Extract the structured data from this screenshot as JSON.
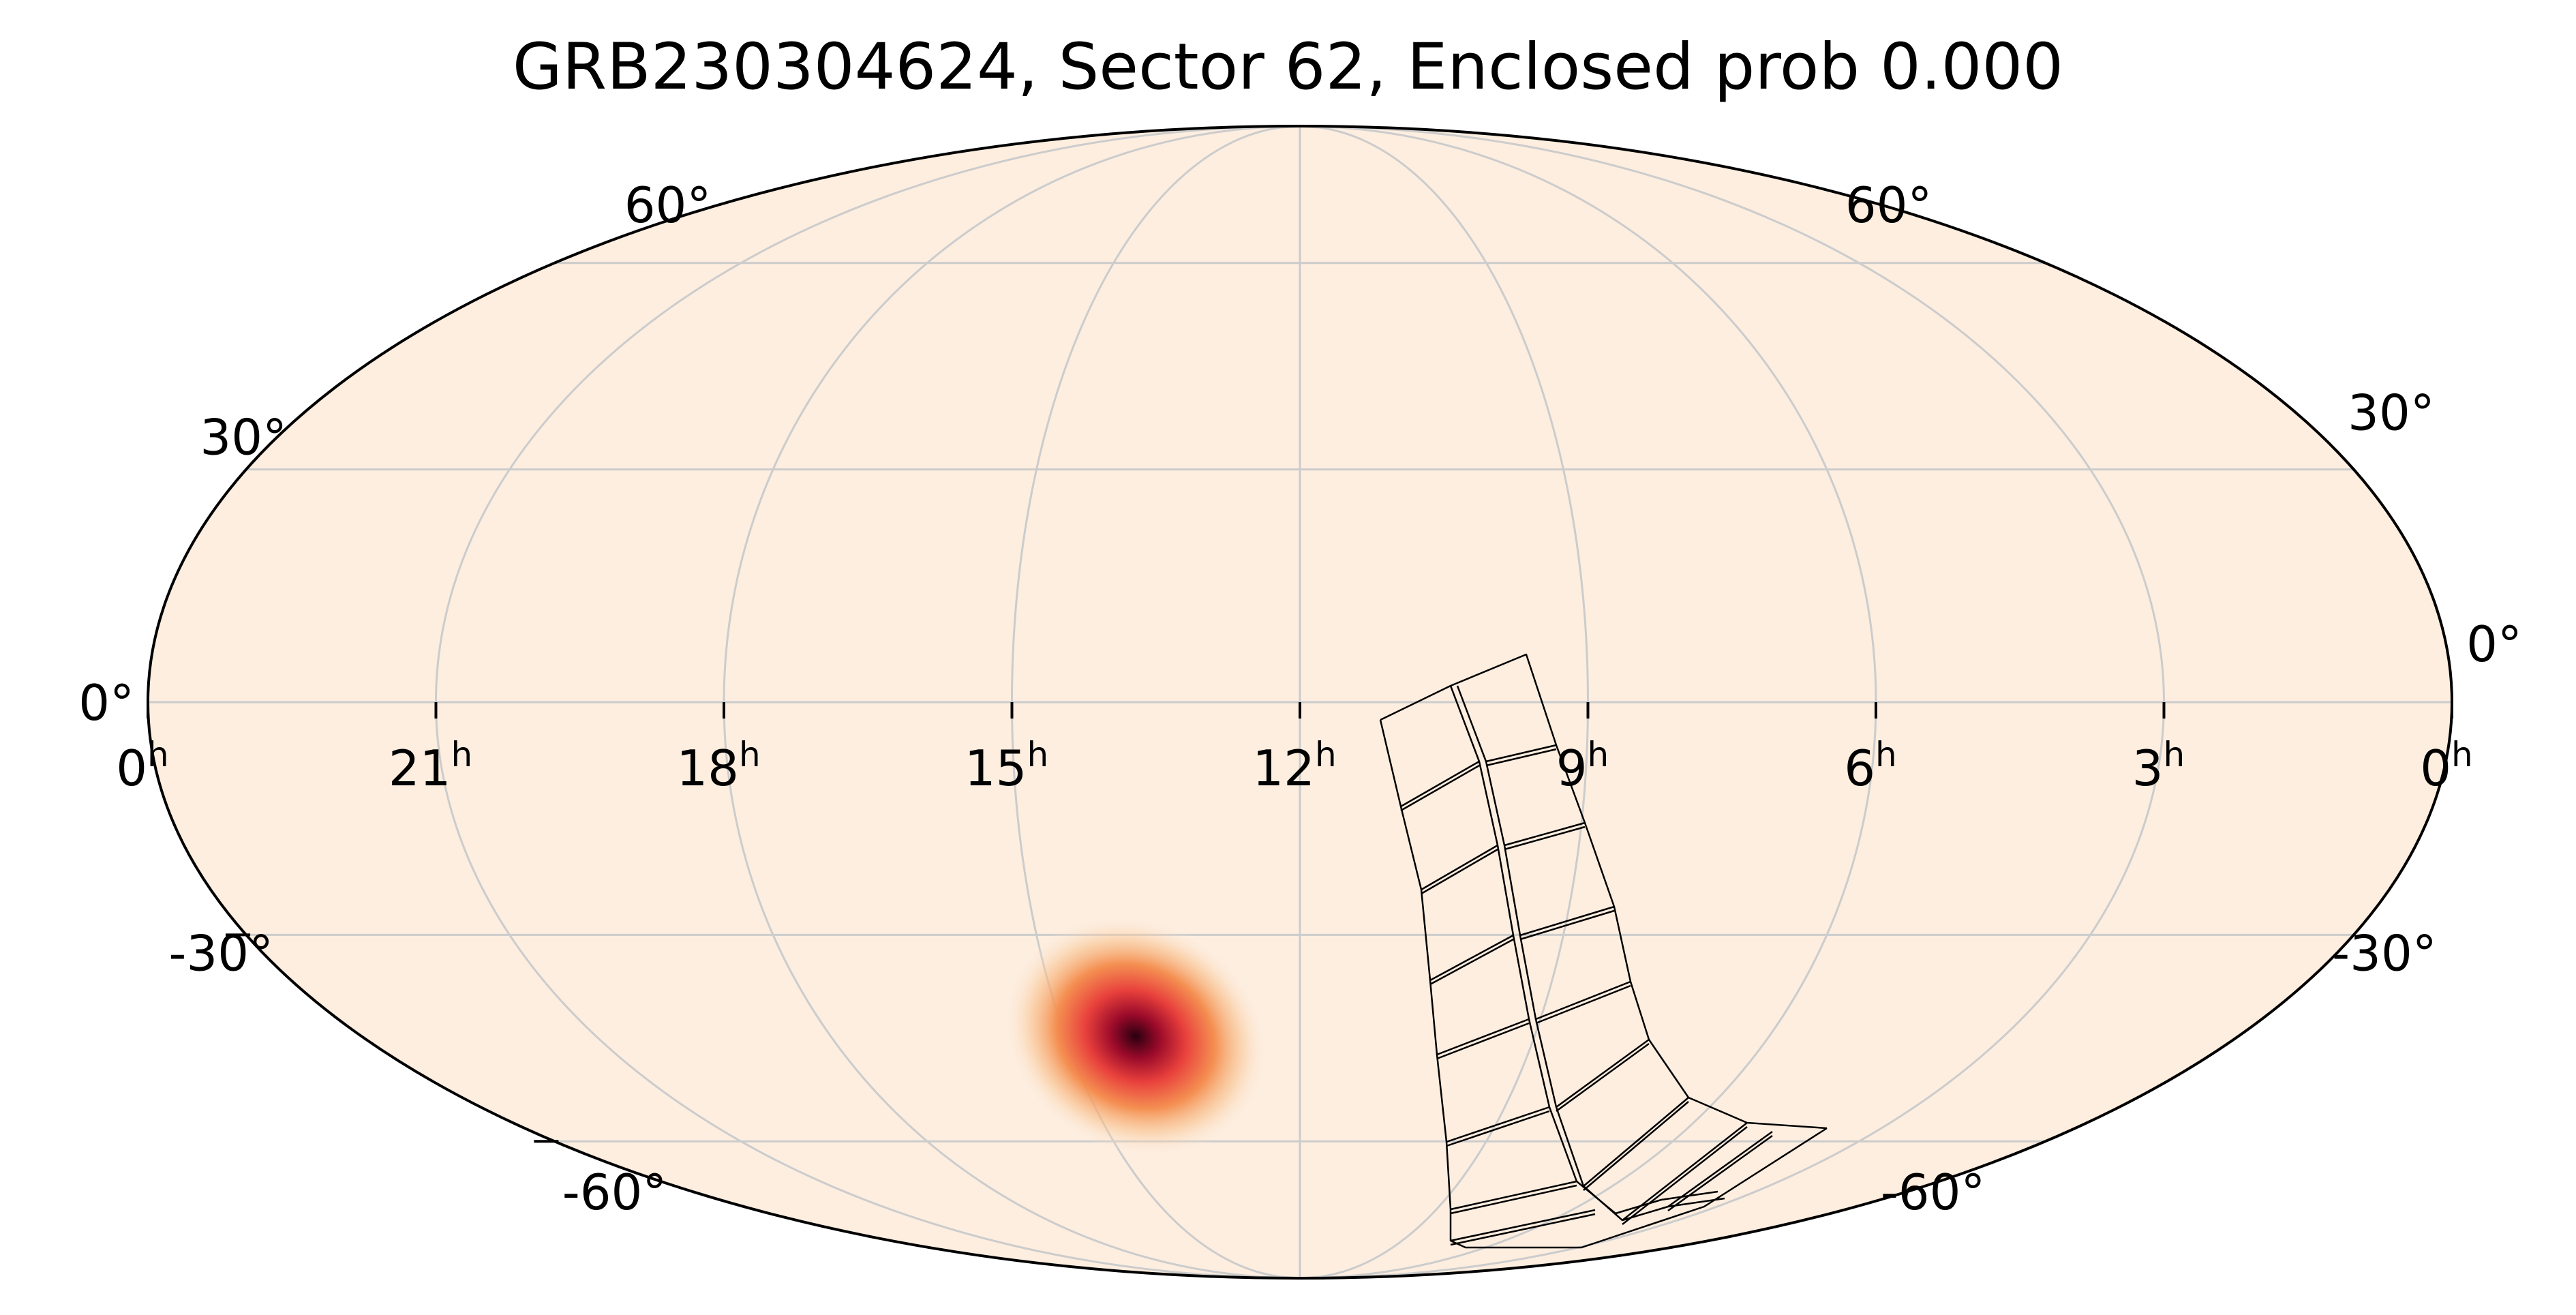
{
  "chart_data": {
    "type": "heatmap",
    "projection": "mollweide",
    "title": "GRB230304624, Sector 62, Enclosed prob 0.000",
    "grid": true,
    "ra_ticks": [
      "0",
      "21",
      "18",
      "15",
      "12",
      "9",
      "6",
      "3",
      "0"
    ],
    "ra_tick_suffix": "h",
    "dec_ticks_left": [
      "60°",
      "30°",
      "0°",
      "-30°",
      "-60°"
    ],
    "dec_ticks_right": [
      "60°",
      "30°",
      "0°",
      "-30°",
      "-60°"
    ],
    "dec_values": [
      60,
      30,
      0,
      -30,
      -60
    ],
    "probability_peak": {
      "ra_hours": 14.1,
      "dec_deg": -44
    },
    "colors": {
      "background": "#fdeee0",
      "grid": "#cccccc",
      "outline": "#000000",
      "heat_low": "#f6b470",
      "heat_mid": "#e8403c",
      "heat_high": "#2a0010"
    },
    "footprint": {
      "description_cells": 16,
      "columns": 2
    }
  }
}
